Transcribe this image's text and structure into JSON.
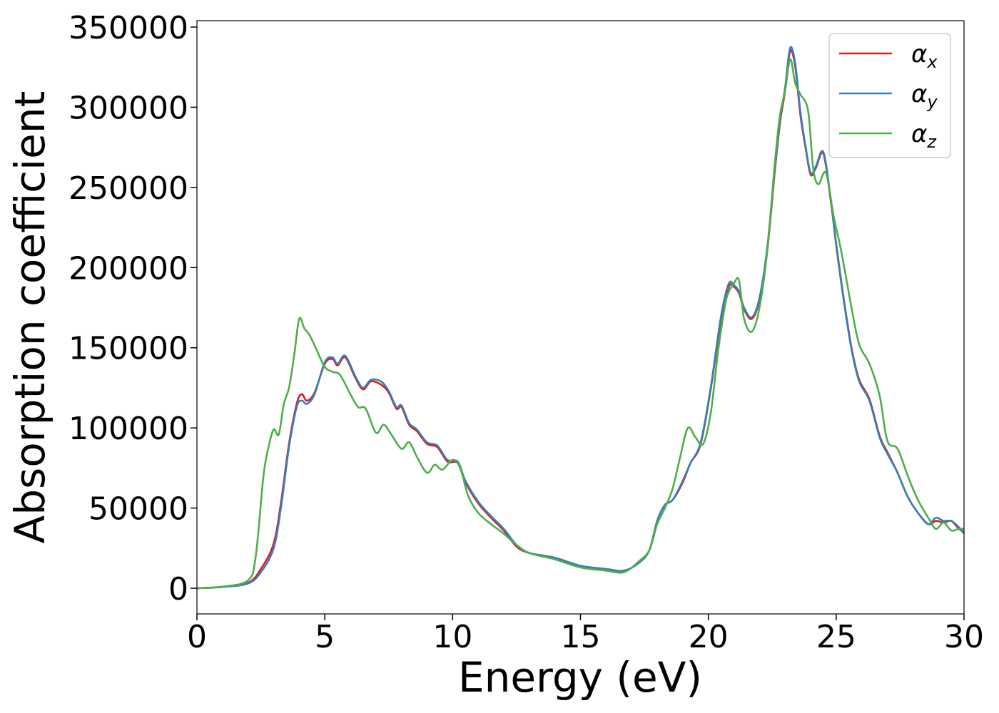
{
  "chart_data": {
    "type": "line",
    "title": "",
    "xlabel": "Energy (eV)",
    "ylabel": "Absorption coefficient",
    "xlim": [
      0,
      30
    ],
    "ylim": [
      -16000,
      354000
    ],
    "xticks": [
      0,
      5,
      10,
      15,
      20,
      25,
      30
    ],
    "yticks": [
      0,
      50000,
      100000,
      150000,
      200000,
      250000,
      300000,
      350000
    ],
    "grid": false,
    "legend_position": "top-right",
    "series": [
      {
        "name": "αx",
        "name_base": "α",
        "name_sub": "x",
        "color": "#e41a1c",
        "x": [
          0,
          1,
          2,
          2.5,
          3,
          3.3,
          3.6,
          3.9,
          4.1,
          4.3,
          4.6,
          5,
          5.3,
          5.5,
          5.8,
          6.2,
          6.5,
          6.8,
          7.2,
          7.5,
          7.8,
          8,
          8.3,
          8.6,
          9,
          9.4,
          9.8,
          10.2,
          10.5,
          11,
          11.5,
          12,
          12.5,
          13,
          14,
          15,
          16,
          16.7,
          17.3,
          17.7,
          18,
          18.3,
          18.6,
          19,
          19.3,
          19.7,
          20.1,
          20.5,
          20.8,
          21,
          21.2,
          21.4,
          21.7,
          22,
          22.3,
          22.6,
          22.8,
          23,
          23.2,
          23.4,
          23.6,
          23.8,
          24,
          24.2,
          24.5,
          24.8,
          25,
          25.3,
          25.6,
          25.9,
          26.3,
          26.7,
          27,
          27.4,
          27.8,
          28.2,
          28.6,
          28.9,
          29.2,
          29.5,
          29.8,
          30
        ],
        "y": [
          0,
          800,
          3500,
          12000,
          28000,
          55000,
          90000,
          115000,
          121000,
          117000,
          122000,
          140000,
          143000,
          139000,
          144000,
          131000,
          124000,
          129000,
          127000,
          122000,
          112000,
          113000,
          102000,
          98000,
          90000,
          88000,
          79000,
          78000,
          66000,
          53000,
          44000,
          36000,
          26000,
          22000,
          19000,
          14000,
          12000,
          11000,
          16000,
          24000,
          42000,
          52000,
          55000,
          66000,
          78000,
          90000,
          125000,
          168000,
          188000,
          188000,
          184000,
          174000,
          168000,
          180000,
          210000,
          260000,
          290000,
          310000,
          335000,
          325000,
          295000,
          275000,
          258000,
          262000,
          271000,
          240000,
          215000,
          180000,
          150000,
          130000,
          118000,
          95000,
          85000,
          72000,
          57000,
          47000,
          40000,
          42000,
          41000,
          42000,
          37000,
          35000
        ]
      },
      {
        "name": "αy",
        "name_base": "α",
        "name_sub": "y",
        "color": "#377eb8",
        "x": [
          0,
          1,
          2,
          2.5,
          3,
          3.3,
          3.6,
          3.9,
          4.1,
          4.3,
          4.6,
          5,
          5.3,
          5.5,
          5.8,
          6.2,
          6.5,
          6.8,
          7.2,
          7.5,
          7.8,
          8,
          8.3,
          8.6,
          9,
          9.4,
          9.8,
          10.2,
          10.5,
          11,
          11.5,
          12,
          12.5,
          13,
          14,
          15,
          16,
          16.7,
          17.3,
          17.7,
          18,
          18.3,
          18.6,
          19,
          19.3,
          19.7,
          20.1,
          20.5,
          20.8,
          21,
          21.2,
          21.4,
          21.7,
          22,
          22.3,
          22.6,
          22.8,
          23,
          23.2,
          23.4,
          23.6,
          23.8,
          24,
          24.2,
          24.5,
          24.8,
          25,
          25.3,
          25.6,
          25.9,
          26.3,
          26.7,
          27,
          27.4,
          27.8,
          28.2,
          28.6,
          28.9,
          29.2,
          29.5,
          29.8,
          30
        ],
        "y": [
          0,
          800,
          3000,
          10000,
          25000,
          52000,
          88000,
          113000,
          117000,
          115000,
          121000,
          141000,
          144000,
          140000,
          145000,
          132000,
          125000,
          130000,
          129000,
          123000,
          113000,
          114000,
          103000,
          99000,
          91000,
          89000,
          80000,
          79000,
          67000,
          54000,
          45000,
          37000,
          27000,
          22000,
          19000,
          14000,
          12000,
          11000,
          16000,
          24000,
          42000,
          52000,
          55000,
          67000,
          78000,
          91000,
          126000,
          170000,
          190000,
          189000,
          185000,
          175000,
          169000,
          181000,
          212000,
          262000,
          292000,
          312000,
          337000,
          327000,
          297000,
          276000,
          259000,
          263000,
          272000,
          241000,
          214000,
          179000,
          149000,
          129000,
          117000,
          94000,
          84000,
          72000,
          57000,
          47000,
          40000,
          44000,
          42000,
          42000,
          38000,
          34000
        ]
      },
      {
        "name": "αz",
        "name_base": "α",
        "name_sub": "z",
        "color": "#4daf4a",
        "x": [
          0,
          1,
          2,
          2.3,
          2.6,
          2.8,
          3,
          3.2,
          3.4,
          3.6,
          3.8,
          4,
          4.2,
          4.4,
          4.7,
          5,
          5.3,
          5.6,
          6,
          6.3,
          6.6,
          7,
          7.3,
          7.6,
          8,
          8.3,
          8.6,
          9,
          9.3,
          9.6,
          10,
          10.3,
          10.6,
          11,
          11.5,
          12,
          12.5,
          13,
          14,
          15,
          16,
          16.7,
          17.3,
          17.7,
          18,
          18.3,
          18.6,
          18.9,
          19.2,
          19.5,
          19.8,
          20.1,
          20.4,
          20.7,
          21,
          21.2,
          21.4,
          21.7,
          22,
          22.3,
          22.6,
          22.8,
          23,
          23.2,
          23.4,
          23.6,
          23.9,
          24.1,
          24.3,
          24.6,
          24.9,
          25.2,
          25.6,
          25.9,
          26.3,
          26.7,
          27,
          27.4,
          27.8,
          28.2,
          28.6,
          28.9,
          29.2,
          29.5,
          29.8,
          30
        ],
        "y": [
          0,
          1000,
          5000,
          20000,
          70000,
          88000,
          99000,
          96000,
          115000,
          125000,
          145000,
          168000,
          162000,
          158000,
          148000,
          138000,
          135000,
          133000,
          121000,
          113000,
          112000,
          97000,
          102000,
          96000,
          87000,
          91000,
          82000,
          72000,
          77000,
          74000,
          80000,
          75000,
          58000,
          47000,
          40000,
          34000,
          27000,
          22000,
          18000,
          13000,
          11000,
          10000,
          17000,
          24000,
          40000,
          50000,
          62000,
          82000,
          100000,
          94000,
          90000,
          110000,
          150000,
          180000,
          190000,
          192000,
          168000,
          160000,
          175000,
          210000,
          265000,
          295000,
          310000,
          330000,
          315000,
          308000,
          298000,
          262000,
          252000,
          259000,
          232000,
          210000,
          175000,
          152000,
          140000,
          120000,
          92000,
          87000,
          70000,
          55000,
          44000,
          37000,
          41000,
          36000,
          37000,
          37000
        ]
      }
    ]
  }
}
